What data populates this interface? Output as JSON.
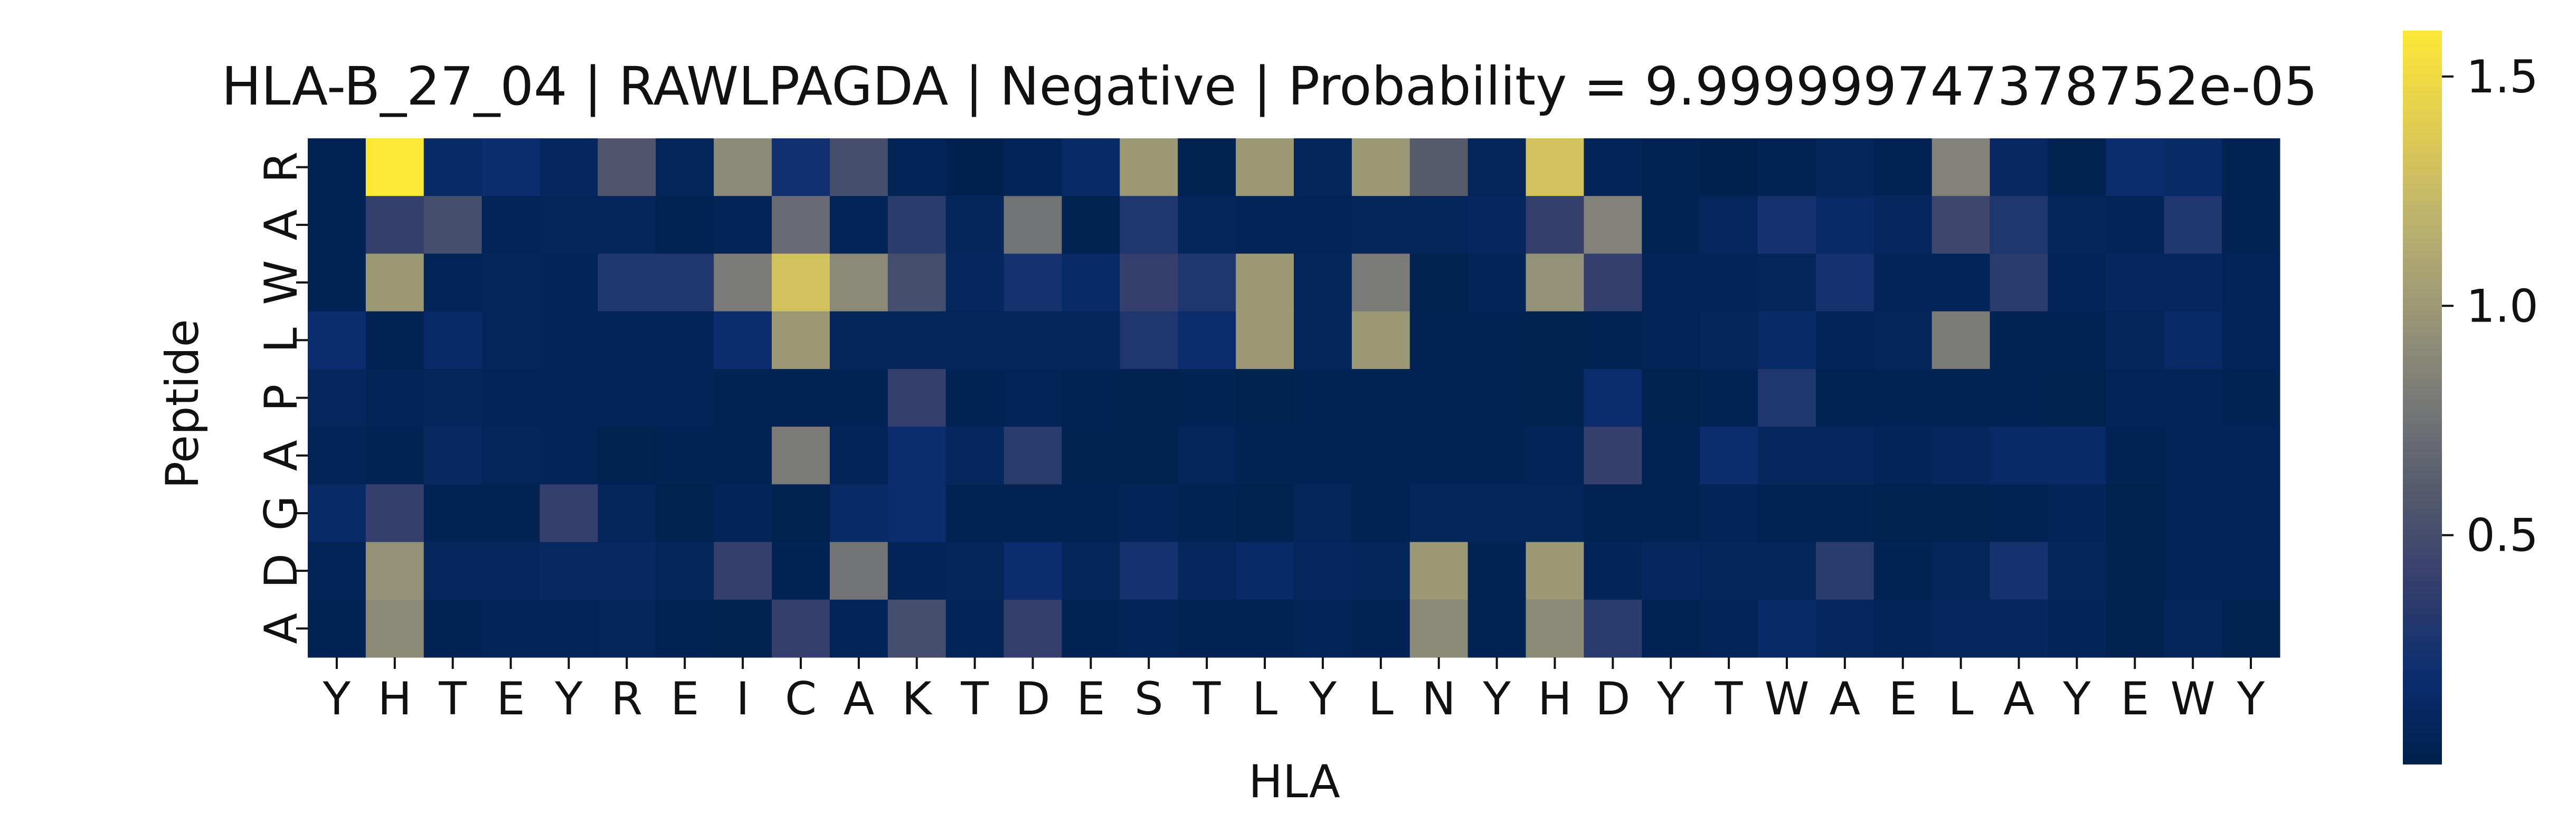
{
  "chart_data": {
    "type": "heatmap",
    "title": "HLA-B_27_04 | RAWLPAGDA | Negative | Probability = 9.999999747378752e-05",
    "xlabel": "HLA",
    "ylabel": "Peptide",
    "x_tick_labels": [
      "Y",
      "H",
      "T",
      "E",
      "Y",
      "R",
      "E",
      "I",
      "C",
      "A",
      "K",
      "T",
      "D",
      "E",
      "S",
      "T",
      "L",
      "Y",
      "L",
      "N",
      "Y",
      "H",
      "D",
      "Y",
      "T",
      "W",
      "A",
      "E",
      "L",
      "A",
      "Y",
      "E",
      "W",
      "Y"
    ],
    "y_tick_labels": [
      "R",
      "A",
      "W",
      "L",
      "P",
      "A",
      "G",
      "D",
      "A"
    ],
    "colormap": "cividis",
    "colorbar": {
      "min": 0.0,
      "max": 1.6,
      "ticks": [
        0.5,
        1.0,
        1.5
      ],
      "tick_labels": [
        "0.5",
        "1.0",
        "1.5"
      ]
    },
    "values": [
      [
        0.05,
        1.6,
        0.15,
        0.2,
        0.1,
        0.55,
        0.08,
        0.9,
        0.22,
        0.5,
        0.06,
        0.02,
        0.06,
        0.15,
        1.0,
        0.03,
        1.0,
        0.08,
        1.0,
        0.6,
        0.08,
        1.3,
        0.06,
        0.04,
        0.02,
        0.04,
        0.08,
        0.04,
        0.85,
        0.12,
        0.03,
        0.2,
        0.15,
        0.05
      ],
      [
        0.04,
        0.4,
        0.5,
        0.06,
        0.08,
        0.08,
        0.05,
        0.06,
        0.7,
        0.06,
        0.35,
        0.08,
        0.75,
        0.03,
        0.3,
        0.08,
        0.06,
        0.06,
        0.08,
        0.08,
        0.1,
        0.4,
        0.85,
        0.04,
        0.1,
        0.25,
        0.15,
        0.1,
        0.45,
        0.3,
        0.08,
        0.06,
        0.3,
        0.04
      ],
      [
        0.04,
        1.0,
        0.06,
        0.08,
        0.06,
        0.3,
        0.3,
        0.8,
        1.3,
        0.9,
        0.5,
        0.1,
        0.25,
        0.15,
        0.4,
        0.3,
        1.0,
        0.08,
        0.8,
        0.03,
        0.06,
        0.95,
        0.4,
        0.06,
        0.06,
        0.08,
        0.25,
        0.06,
        0.06,
        0.35,
        0.06,
        0.1,
        0.1,
        0.06
      ],
      [
        0.2,
        0.05,
        0.15,
        0.08,
        0.06,
        0.06,
        0.06,
        0.2,
        1.0,
        0.08,
        0.08,
        0.08,
        0.08,
        0.08,
        0.3,
        0.2,
        1.0,
        0.08,
        1.0,
        0.05,
        0.05,
        0.03,
        0.05,
        0.06,
        0.08,
        0.15,
        0.06,
        0.08,
        0.8,
        0.05,
        0.05,
        0.08,
        0.15,
        0.06
      ],
      [
        0.1,
        0.06,
        0.08,
        0.06,
        0.06,
        0.06,
        0.06,
        0.05,
        0.04,
        0.05,
        0.4,
        0.05,
        0.06,
        0.04,
        0.03,
        0.04,
        0.03,
        0.04,
        0.04,
        0.04,
        0.04,
        0.03,
        0.2,
        0.03,
        0.04,
        0.3,
        0.04,
        0.04,
        0.04,
        0.04,
        0.03,
        0.06,
        0.06,
        0.04
      ],
      [
        0.06,
        0.05,
        0.12,
        0.08,
        0.06,
        0.03,
        0.05,
        0.05,
        0.8,
        0.06,
        0.2,
        0.1,
        0.35,
        0.03,
        0.03,
        0.08,
        0.04,
        0.05,
        0.05,
        0.05,
        0.05,
        0.06,
        0.4,
        0.04,
        0.2,
        0.1,
        0.1,
        0.06,
        0.1,
        0.15,
        0.15,
        0.04,
        0.06,
        0.06
      ],
      [
        0.15,
        0.4,
        0.05,
        0.04,
        0.4,
        0.08,
        0.03,
        0.06,
        0.03,
        0.15,
        0.2,
        0.04,
        0.05,
        0.04,
        0.06,
        0.04,
        0.03,
        0.08,
        0.04,
        0.08,
        0.08,
        0.08,
        0.04,
        0.05,
        0.06,
        0.05,
        0.04,
        0.03,
        0.03,
        0.04,
        0.06,
        0.03,
        0.06,
        0.06
      ],
      [
        0.06,
        0.95,
        0.1,
        0.1,
        0.12,
        0.12,
        0.08,
        0.4,
        0.04,
        0.75,
        0.06,
        0.08,
        0.2,
        0.08,
        0.25,
        0.1,
        0.15,
        0.1,
        0.08,
        1.0,
        0.04,
        1.0,
        0.06,
        0.1,
        0.08,
        0.08,
        0.35,
        0.05,
        0.08,
        0.25,
        0.08,
        0.03,
        0.06,
        0.06
      ],
      [
        0.04,
        0.9,
        0.05,
        0.06,
        0.06,
        0.08,
        0.04,
        0.03,
        0.4,
        0.06,
        0.5,
        0.06,
        0.4,
        0.04,
        0.06,
        0.05,
        0.05,
        0.06,
        0.05,
        0.9,
        0.05,
        0.9,
        0.35,
        0.05,
        0.06,
        0.15,
        0.1,
        0.06,
        0.1,
        0.1,
        0.06,
        0.03,
        0.08,
        0.03
      ]
    ]
  }
}
